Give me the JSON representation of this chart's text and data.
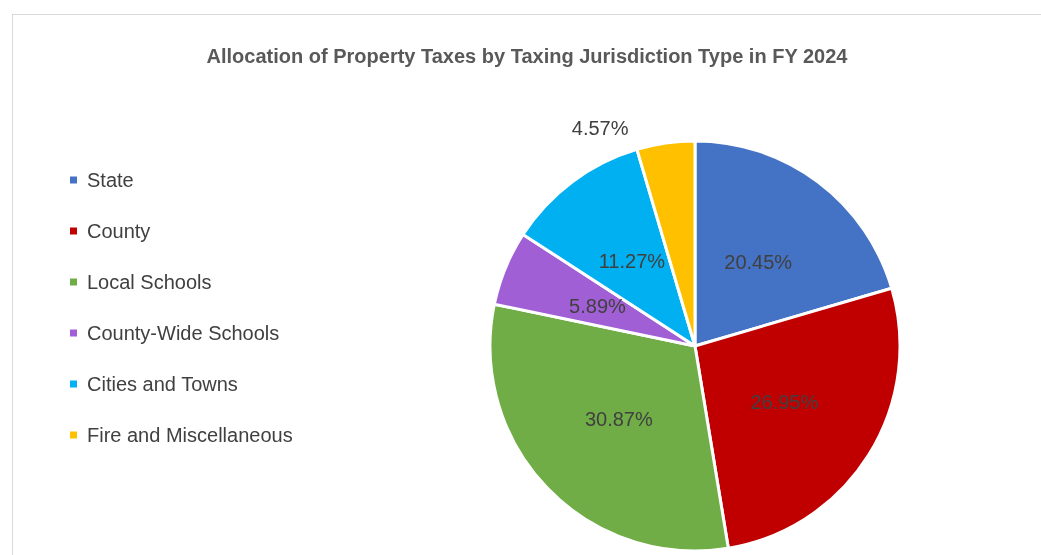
{
  "chart_data": {
    "type": "pie",
    "title": "Allocation of Property Taxes by Taxing Jurisdiction Type in FY 2024",
    "categories": [
      "State",
      "County",
      "Local Schools",
      "County-Wide Schools",
      "Cities and Towns",
      "Fire and Miscellaneous"
    ],
    "values": [
      20.45,
      26.95,
      30.87,
      5.89,
      11.27,
      4.57
    ],
    "colors": [
      "#4472c4",
      "#c00000",
      "#70ad47",
      "#a05fd4",
      "#00b0f0",
      "#ffc000"
    ],
    "value_labels": [
      "20.45%",
      "26.95%",
      "30.87%",
      "5.89%",
      "11.27%",
      "4.57%"
    ],
    "legend": "left"
  }
}
